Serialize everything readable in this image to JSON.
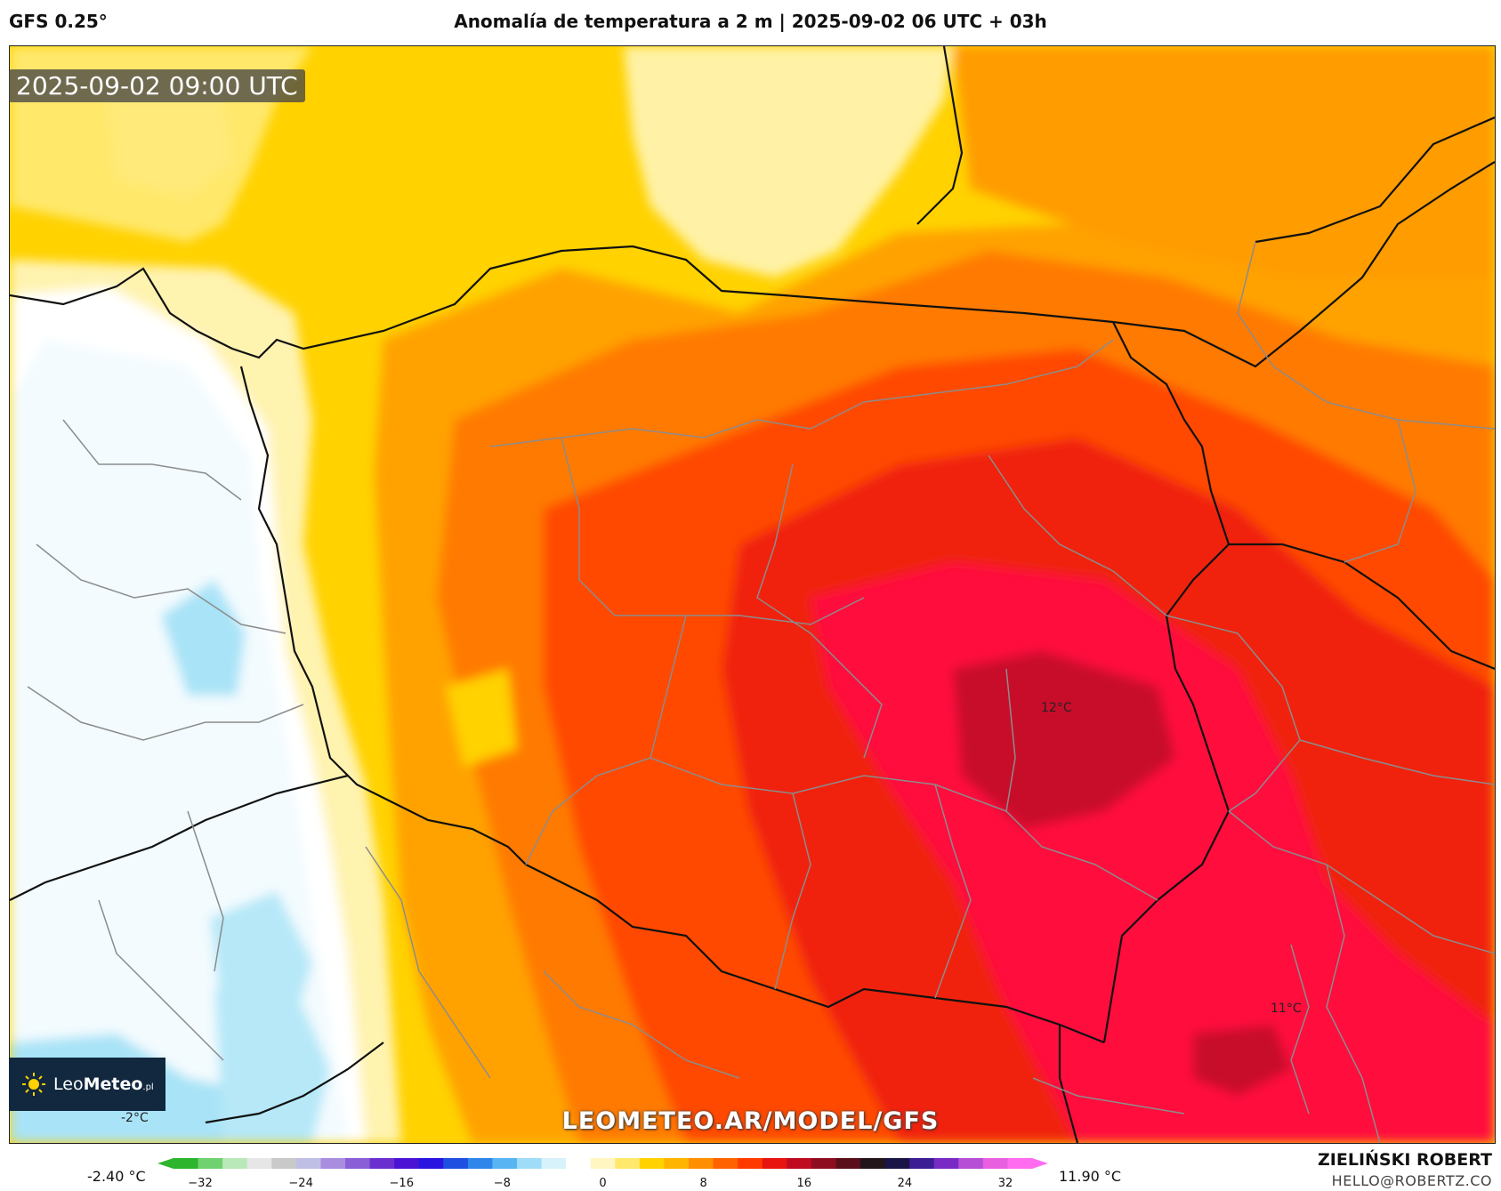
{
  "header": {
    "model": "GFS 0.25°",
    "title": "Anomalía de temperatura a 2 m | 2025-09-02 06 UTC + 03h"
  },
  "map": {
    "timestamp": "2025-09-02 09:00 UTC",
    "watermark": "LEOMETEO.AR/MODEL/GFS",
    "labels": {
      "max_label": "12°C",
      "secondary_label": "11°C",
      "min_label": "-2°C"
    }
  },
  "logo": {
    "name_light": "Leo",
    "name_bold": "Meteo",
    "suffix": ".pl",
    "icon": "sun-icon"
  },
  "colorbar": {
    "min_value": "-2.40 °C",
    "max_value": "11.90 °C",
    "ticks": [
      "−32",
      "−24",
      "−16",
      "−8",
      "0",
      "8",
      "16",
      "24",
      "32"
    ],
    "colors": [
      "#2db52d",
      "#6fd16f",
      "#b9e8b9",
      "#e6e6e6",
      "#c9c9c9",
      "#bfbfe6",
      "#a98ee0",
      "#8a5ed6",
      "#6b2fd0",
      "#4b14d4",
      "#2a14e0",
      "#1f4fe0",
      "#2f86ea",
      "#58b4f2",
      "#9fdcf7",
      "#d7f2fb",
      "#ffffff",
      "#fff6c2",
      "#ffe86b",
      "#ffd200",
      "#ffb400",
      "#ff8f00",
      "#ff6200",
      "#ff3a00",
      "#e8140f",
      "#c00a20",
      "#8e0e20",
      "#5a0e1a",
      "#22161a",
      "#1b1447",
      "#3c1d94",
      "#7a2ac4",
      "#b64fd6",
      "#e85fe0",
      "#ff6cf0"
    ]
  },
  "credits": {
    "author": "ZIELIŃSKI ROBERT",
    "email": "HELLO@ROBERTZ.CO"
  }
}
